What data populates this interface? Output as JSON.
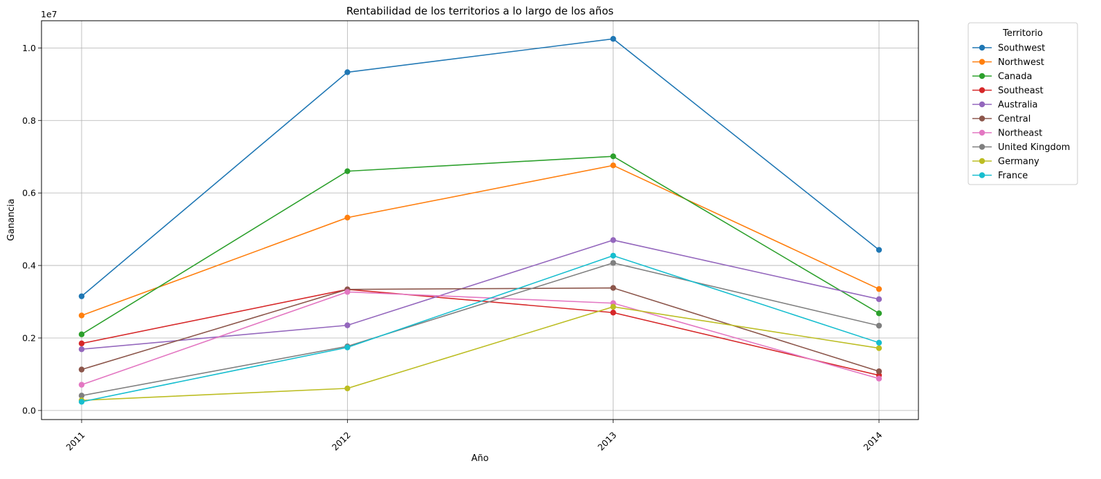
{
  "chart_data": {
    "type": "line",
    "title": "Rentabilidad de los territorios a lo largo de los años",
    "xlabel": "Año",
    "ylabel": "Ganancia",
    "y_offset_label": "1e7",
    "categories": [
      "2011",
      "2012",
      "2013",
      "2014"
    ],
    "ylim": [
      -250000,
      10750000
    ],
    "yticks": [
      0,
      2000000,
      4000000,
      6000000,
      8000000,
      10000000
    ],
    "ytick_labels": [
      "0.0",
      "0.2",
      "0.4",
      "0.6",
      "0.8",
      "1.0"
    ],
    "grid": true,
    "legend": {
      "title": "Territorio",
      "placement": "outside-top-right"
    },
    "series": [
      {
        "name": "Southwest",
        "color": "#1f77b4",
        "values": [
          3150000,
          9330000,
          10250000,
          4430000
        ]
      },
      {
        "name": "Northwest",
        "color": "#ff7f0e",
        "values": [
          2620000,
          5320000,
          6760000,
          3350000
        ]
      },
      {
        "name": "Canada",
        "color": "#2ca02c",
        "values": [
          2100000,
          6600000,
          7010000,
          2680000
        ]
      },
      {
        "name": "Southeast",
        "color": "#d62728",
        "values": [
          1850000,
          3340000,
          2700000,
          970000
        ]
      },
      {
        "name": "Australia",
        "color": "#9467bd",
        "values": [
          1690000,
          2350000,
          4700000,
          3070000
        ]
      },
      {
        "name": "Central",
        "color": "#8c564b",
        "values": [
          1130000,
          3340000,
          3380000,
          1080000
        ]
      },
      {
        "name": "Northeast",
        "color": "#e377c2",
        "values": [
          710000,
          3270000,
          2960000,
          880000
        ]
      },
      {
        "name": "United Kingdom",
        "color": "#7f7f7f",
        "values": [
          410000,
          1770000,
          4070000,
          2340000
        ]
      },
      {
        "name": "Germany",
        "color": "#bcbd22",
        "values": [
          280000,
          610000,
          2860000,
          1720000
        ]
      },
      {
        "name": "France",
        "color": "#17becf",
        "values": [
          240000,
          1740000,
          4270000,
          1870000
        ]
      }
    ]
  }
}
